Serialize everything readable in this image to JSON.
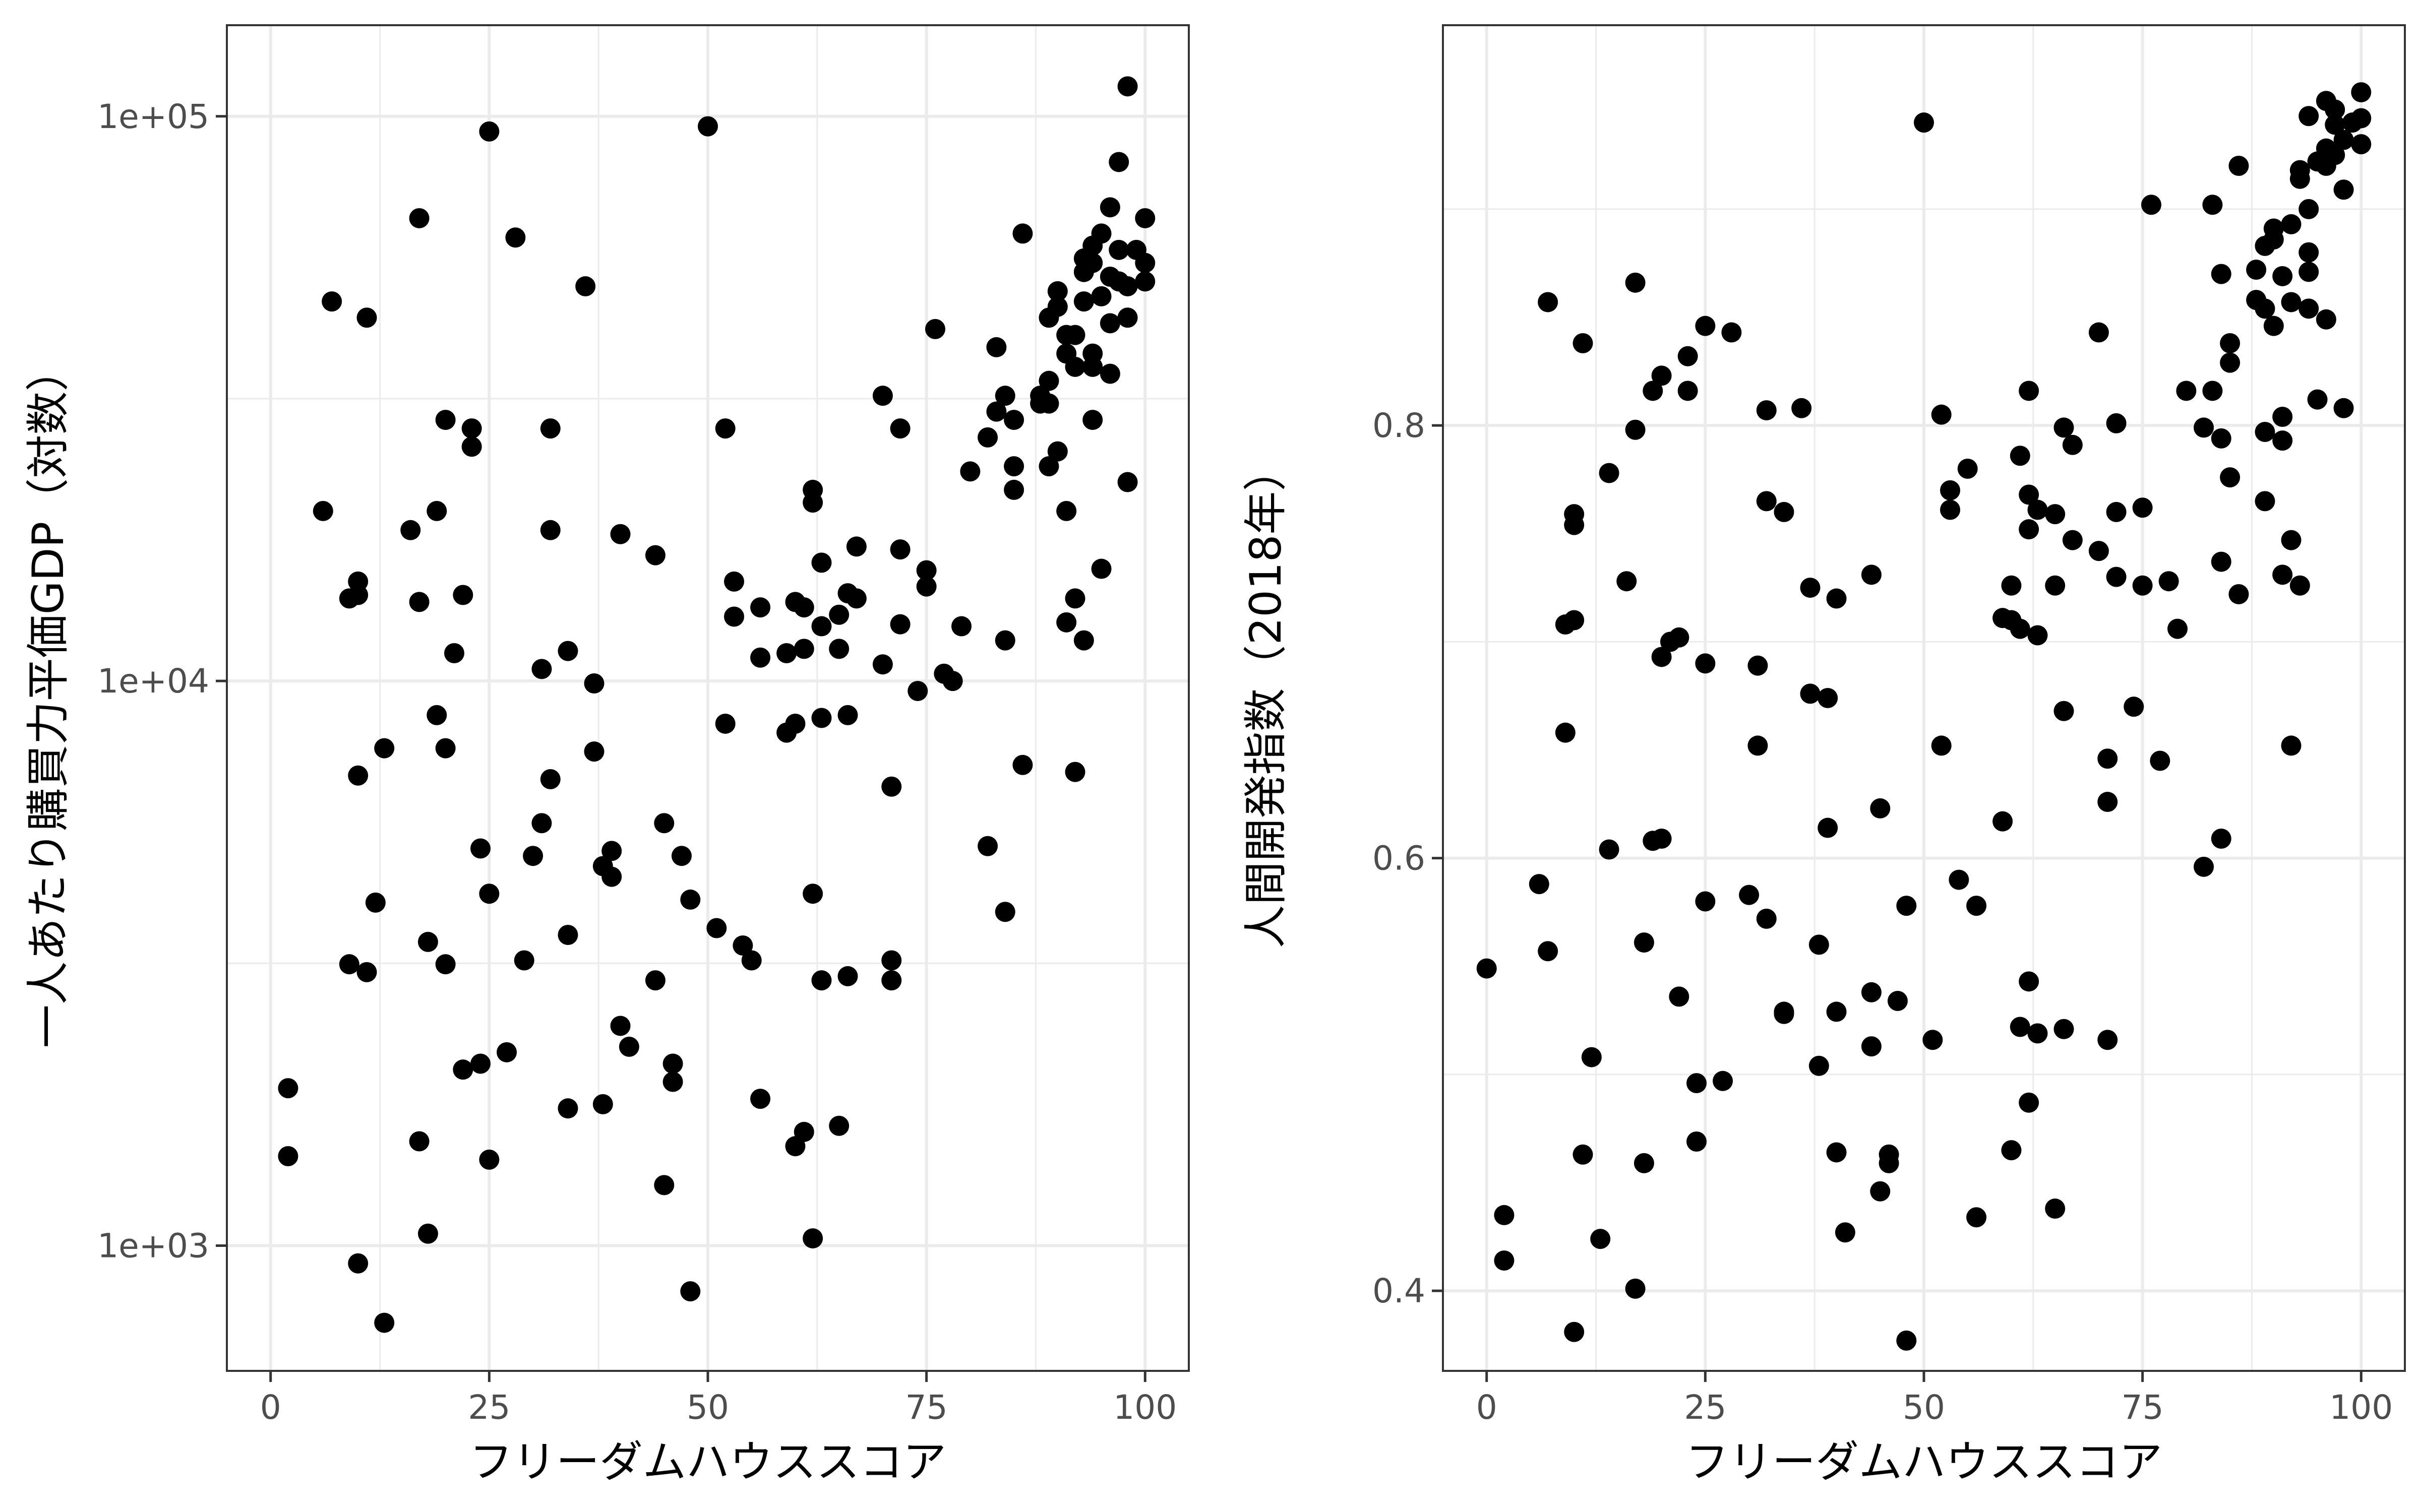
{
  "chart_data": [
    {
      "type": "scatter",
      "xlabel": "フリーダムハウススコア",
      "ylabel": "一人あたり購買力平価GDP（対数）",
      "xlim": [
        -5,
        105
      ],
      "ylim": [
        600,
        145000
      ],
      "yscale": "log10",
      "x_ticks": [
        0,
        25,
        50,
        75,
        100
      ],
      "x_tick_labels": [
        "0",
        "25",
        "50",
        "75",
        "100"
      ],
      "y_ticks": [
        1000,
        10000,
        100000
      ],
      "y_tick_labels": [
        "1e+03",
        "1e+04",
        "1e+05"
      ],
      "grid": true,
      "points": [
        [
          2,
          1900
        ],
        [
          2,
          1440
        ],
        [
          6,
          20000
        ],
        [
          7,
          47000
        ],
        [
          9,
          14000
        ],
        [
          9,
          3150
        ],
        [
          10,
          14200
        ],
        [
          10,
          15000
        ],
        [
          10,
          6800
        ],
        [
          10,
          930
        ],
        [
          11,
          3050
        ],
        [
          11,
          44000
        ],
        [
          12,
          4050
        ],
        [
          13,
          7600
        ],
        [
          13,
          730
        ],
        [
          16,
          18500
        ],
        [
          17,
          66000
        ],
        [
          17,
          13800
        ],
        [
          17,
          1530
        ],
        [
          18,
          3450
        ],
        [
          18,
          1050
        ],
        [
          19,
          8700
        ],
        [
          19,
          20000
        ],
        [
          20,
          29000
        ],
        [
          20,
          7600
        ],
        [
          20,
          3150
        ],
        [
          21,
          11200
        ],
        [
          22,
          14200
        ],
        [
          22,
          2050
        ],
        [
          23,
          28000
        ],
        [
          23,
          26000
        ],
        [
          24,
          5050
        ],
        [
          24,
          2100
        ],
        [
          25,
          94000
        ],
        [
          25,
          4200
        ],
        [
          25,
          1420
        ],
        [
          27,
          2200
        ],
        [
          28,
          61000
        ],
        [
          29,
          3200
        ],
        [
          30,
          4900
        ],
        [
          31,
          10500
        ],
        [
          31,
          5600
        ],
        [
          32,
          28000
        ],
        [
          32,
          6700
        ],
        [
          32,
          18500
        ],
        [
          34,
          11300
        ],
        [
          34,
          3550
        ],
        [
          34,
          1750
        ],
        [
          36,
          50000
        ],
        [
          37,
          9900
        ],
        [
          37,
          7500
        ],
        [
          38,
          4700
        ],
        [
          38,
          1780
        ],
        [
          39,
          5000
        ],
        [
          39,
          4500
        ],
        [
          40,
          18200
        ],
        [
          40,
          2450
        ],
        [
          41,
          2250
        ],
        [
          44,
          2950
        ],
        [
          44,
          16700
        ],
        [
          45,
          5600
        ],
        [
          45,
          1280
        ],
        [
          46,
          2100
        ],
        [
          46,
          1950
        ],
        [
          47,
          4900
        ],
        [
          48,
          830
        ],
        [
          48,
          4100
        ],
        [
          50,
          96000
        ],
        [
          51,
          3650
        ],
        [
          52,
          8400
        ],
        [
          52,
          28000
        ],
        [
          53,
          13000
        ],
        [
          53,
          15000
        ],
        [
          54,
          3400
        ],
        [
          55,
          3200
        ],
        [
          56,
          1820
        ],
        [
          56,
          13500
        ],
        [
          56,
          11000
        ],
        [
          59,
          11200
        ],
        [
          59,
          8100
        ],
        [
          60,
          8400
        ],
        [
          60,
          13800
        ],
        [
          60,
          1500
        ],
        [
          61,
          11400
        ],
        [
          61,
          13500
        ],
        [
          61,
          1590
        ],
        [
          62,
          20700
        ],
        [
          62,
          21800
        ],
        [
          62,
          4200
        ],
        [
          62,
          1030
        ],
        [
          63,
          16200
        ],
        [
          63,
          12500
        ],
        [
          63,
          8600
        ],
        [
          63,
          2950
        ],
        [
          65,
          1630
        ],
        [
          65,
          13100
        ],
        [
          65,
          11400
        ],
        [
          66,
          8700
        ],
        [
          66,
          14300
        ],
        [
          66,
          3000
        ],
        [
          67,
          17300
        ],
        [
          67,
          14000
        ],
        [
          70,
          10700
        ],
        [
          70,
          32000
        ],
        [
          71,
          3200
        ],
        [
          71,
          2950
        ],
        [
          71,
          6500
        ],
        [
          72,
          17100
        ],
        [
          72,
          12600
        ],
        [
          72,
          28000
        ],
        [
          74,
          9600
        ],
        [
          75,
          15700
        ],
        [
          75,
          14700
        ],
        [
          76,
          42000
        ],
        [
          77,
          10300
        ],
        [
          78,
          10000
        ],
        [
          79,
          12500
        ],
        [
          80,
          23500
        ],
        [
          82,
          27000
        ],
        [
          82,
          5100
        ],
        [
          83,
          39000
        ],
        [
          83,
          30000
        ],
        [
          84,
          32000
        ],
        [
          84,
          11800
        ],
        [
          84,
          3900
        ],
        [
          85,
          24000
        ],
        [
          85,
          21800
        ],
        [
          85,
          29000
        ],
        [
          86,
          62000
        ],
        [
          86,
          7100
        ],
        [
          88,
          31000
        ],
        [
          88,
          32000
        ],
        [
          89,
          34000
        ],
        [
          89,
          31000
        ],
        [
          89,
          44000
        ],
        [
          89,
          24000
        ],
        [
          90,
          49000
        ],
        [
          90,
          46000
        ],
        [
          90,
          25500
        ],
        [
          91,
          20000
        ],
        [
          91,
          12700
        ],
        [
          91,
          38000
        ],
        [
          91,
          41000
        ],
        [
          92,
          36000
        ],
        [
          92,
          14000
        ],
        [
          92,
          6900
        ],
        [
          92,
          41000
        ],
        [
          93,
          47000
        ],
        [
          93,
          11800
        ],
        [
          93,
          56000
        ],
        [
          93,
          53000
        ],
        [
          94,
          59000
        ],
        [
          94,
          38000
        ],
        [
          94,
          36000
        ],
        [
          94,
          29000
        ],
        [
          94,
          55000
        ],
        [
          95,
          62000
        ],
        [
          95,
          15800
        ],
        [
          95,
          48000
        ],
        [
          96,
          52000
        ],
        [
          96,
          69000
        ],
        [
          96,
          35000
        ],
        [
          96,
          43000
        ],
        [
          97,
          83000
        ],
        [
          97,
          58000
        ],
        [
          97,
          51000
        ],
        [
          98,
          113000
        ],
        [
          98,
          22500
        ],
        [
          98,
          50000
        ],
        [
          98,
          44000
        ],
        [
          99,
          58000
        ],
        [
          100,
          55000
        ],
        [
          100,
          51000
        ],
        [
          100,
          66000
        ]
      ]
    },
    {
      "type": "scatter",
      "xlabel": "フリーダムハウススコア",
      "ylabel": "人間開発指数（2018年）",
      "xlim": [
        -5,
        105
      ],
      "ylim": [
        0.363,
        0.985
      ],
      "x_ticks": [
        0,
        25,
        50,
        75,
        100
      ],
      "x_tick_labels": [
        "0",
        "25",
        "50",
        "75",
        "100"
      ],
      "y_ticks": [
        0.4,
        0.6,
        0.8
      ],
      "y_tick_labels": [
        "0.4",
        "0.6",
        "0.8"
      ],
      "grid": true,
      "points": [
        [
          0,
          0.549
        ],
        [
          2,
          0.435
        ],
        [
          2,
          0.414
        ],
        [
          6,
          0.588
        ],
        [
          7,
          0.557
        ],
        [
          7,
          0.857
        ],
        [
          9,
          0.708
        ],
        [
          9,
          0.658
        ],
        [
          10,
          0.759
        ],
        [
          10,
          0.754
        ],
        [
          10,
          0.71
        ],
        [
          10,
          0.381
        ],
        [
          11,
          0.838
        ],
        [
          11,
          0.463
        ],
        [
          12,
          0.508
        ],
        [
          13,
          0.424
        ],
        [
          14,
          0.604
        ],
        [
          14,
          0.778
        ],
        [
          16,
          0.728
        ],
        [
          17,
          0.866
        ],
        [
          17,
          0.798
        ],
        [
          17,
          0.401
        ],
        [
          18,
          0.561
        ],
        [
          18,
          0.459
        ],
        [
          19,
          0.816
        ],
        [
          19,
          0.608
        ],
        [
          20,
          0.823
        ],
        [
          20,
          0.693
        ],
        [
          20,
          0.609
        ],
        [
          21,
          0.7
        ],
        [
          22,
          0.702
        ],
        [
          22,
          0.536
        ],
        [
          23,
          0.832
        ],
        [
          23,
          0.816
        ],
        [
          24,
          0.496
        ],
        [
          24,
          0.469
        ],
        [
          25,
          0.846
        ],
        [
          25,
          0.69
        ],
        [
          25,
          0.58
        ],
        [
          27,
          0.497
        ],
        [
          28,
          0.843
        ],
        [
          30,
          0.583
        ],
        [
          31,
          0.689
        ],
        [
          31,
          0.652
        ],
        [
          32,
          0.807
        ],
        [
          32,
          0.765
        ],
        [
          32,
          0.572
        ],
        [
          34,
          0.529
        ],
        [
          34,
          0.528
        ],
        [
          34,
          0.76
        ],
        [
          36,
          0.808
        ],
        [
          37,
          0.725
        ],
        [
          37,
          0.676
        ],
        [
          38,
          0.56
        ],
        [
          38,
          0.504
        ],
        [
          39,
          0.674
        ],
        [
          39,
          0.614
        ],
        [
          40,
          0.72
        ],
        [
          40,
          0.529
        ],
        [
          40,
          0.464
        ],
        [
          41,
          0.427
        ],
        [
          44,
          0.731
        ],
        [
          44,
          0.538
        ],
        [
          44,
          0.513
        ],
        [
          45,
          0.623
        ],
        [
          45,
          0.446
        ],
        [
          46,
          0.463
        ],
        [
          46,
          0.459
        ],
        [
          47,
          0.534
        ],
        [
          48,
          0.578
        ],
        [
          48,
          0.377
        ],
        [
          50,
          0.94
        ],
        [
          51,
          0.516
        ],
        [
          52,
          0.805
        ],
        [
          52,
          0.652
        ],
        [
          53,
          0.77
        ],
        [
          53,
          0.761
        ],
        [
          54,
          0.59
        ],
        [
          55,
          0.78
        ],
        [
          56,
          0.578
        ],
        [
          56,
          0.434
        ],
        [
          59,
          0.711
        ],
        [
          59,
          0.617
        ],
        [
          60,
          0.726
        ],
        [
          60,
          0.71
        ],
        [
          60,
          0.465
        ],
        [
          61,
          0.706
        ],
        [
          61,
          0.786
        ],
        [
          61,
          0.522
        ],
        [
          62,
          0.816
        ],
        [
          62,
          0.768
        ],
        [
          62,
          0.752
        ],
        [
          62,
          0.543
        ],
        [
          62,
          0.487
        ],
        [
          63,
          0.761
        ],
        [
          63,
          0.703
        ],
        [
          63,
          0.519
        ],
        [
          65,
          0.759
        ],
        [
          65,
          0.726
        ],
        [
          65,
          0.438
        ],
        [
          66,
          0.799
        ],
        [
          66,
          0.668
        ],
        [
          66,
          0.521
        ],
        [
          67,
          0.791
        ],
        [
          67,
          0.747
        ],
        [
          70,
          0.742
        ],
        [
          70,
          0.843
        ],
        [
          71,
          0.646
        ],
        [
          71,
          0.626
        ],
        [
          71,
          0.516
        ],
        [
          72,
          0.76
        ],
        [
          72,
          0.801
        ],
        [
          72,
          0.73
        ],
        [
          74,
          0.67
        ],
        [
          75,
          0.762
        ],
        [
          75,
          0.726
        ],
        [
          76,
          0.902
        ],
        [
          77,
          0.645
        ],
        [
          78,
          0.728
        ],
        [
          79,
          0.706
        ],
        [
          80,
          0.816
        ],
        [
          82,
          0.799
        ],
        [
          82,
          0.596
        ],
        [
          83,
          0.902
        ],
        [
          83,
          0.816
        ],
        [
          84,
          0.87
        ],
        [
          84,
          0.794
        ],
        [
          84,
          0.737
        ],
        [
          84,
          0.609
        ],
        [
          85,
          0.838
        ],
        [
          85,
          0.829
        ],
        [
          85,
          0.776
        ],
        [
          86,
          0.92
        ],
        [
          86,
          0.722
        ],
        [
          88,
          0.872
        ],
        [
          88,
          0.858
        ],
        [
          89,
          0.883
        ],
        [
          89,
          0.854
        ],
        [
          89,
          0.797
        ],
        [
          89,
          0.765
        ],
        [
          90,
          0.891
        ],
        [
          90,
          0.846
        ],
        [
          90,
          0.886
        ],
        [
          91,
          0.804
        ],
        [
          91,
          0.731
        ],
        [
          91,
          0.869
        ],
        [
          91,
          0.793
        ],
        [
          92,
          0.893
        ],
        [
          92,
          0.857
        ],
        [
          92,
          0.747
        ],
        [
          92,
          0.652
        ],
        [
          93,
          0.914
        ],
        [
          93,
          0.918
        ],
        [
          93,
          0.726
        ],
        [
          94,
          0.88
        ],
        [
          94,
          0.871
        ],
        [
          94,
          0.9
        ],
        [
          94,
          0.854
        ],
        [
          94,
          0.943
        ],
        [
          95,
          0.922
        ],
        [
          95,
          0.812
        ],
        [
          96,
          0.92
        ],
        [
          96,
          0.95
        ],
        [
          96,
          0.849
        ],
        [
          96,
          0.928
        ],
        [
          97,
          0.946
        ],
        [
          97,
          0.939
        ],
        [
          97,
          0.925
        ],
        [
          98,
          0.932
        ],
        [
          98,
          0.909
        ],
        [
          98,
          0.808
        ],
        [
          99,
          0.94
        ],
        [
          100,
          0.954
        ],
        [
          100,
          0.93
        ],
        [
          100,
          0.942
        ]
      ]
    }
  ]
}
